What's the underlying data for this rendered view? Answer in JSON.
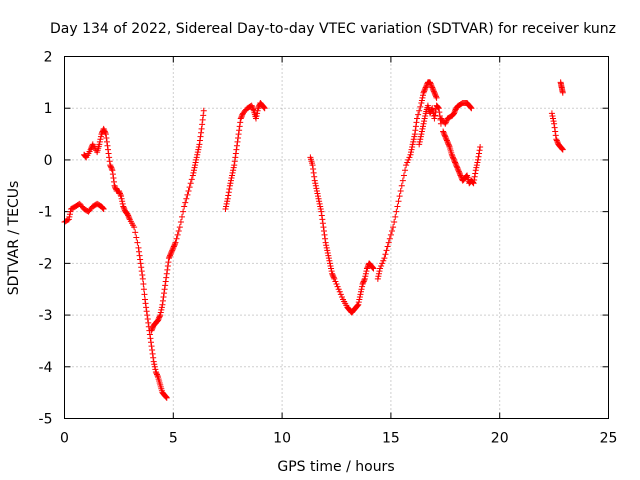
{
  "chart_data": {
    "type": "scatter",
    "title": "Day 134 of 2022, Sidereal Day-to-day VTEC variation (SDTVAR) for receiver kunz",
    "xlabel": "GPS time / hours",
    "ylabel": "SDTVAR / TECUs",
    "xlim": [
      0,
      25
    ],
    "ylim": [
      -5,
      2
    ],
    "xticks": [
      0,
      5,
      10,
      15,
      20,
      25
    ],
    "yticks": [
      -5,
      -4,
      -3,
      -2,
      -1,
      0,
      1,
      2
    ],
    "xtick_labels": [
      "0",
      "5",
      "10",
      "15",
      "20",
      "25"
    ],
    "ytick_labels": [
      "-5",
      "-4",
      "-3",
      "-2",
      "-1",
      "0",
      "1",
      "2"
    ],
    "grid": true,
    "marker": "+",
    "color": "#ff0000",
    "series": [
      {
        "name": "seg1",
        "x": [
          0.0,
          0.2,
          0.3,
          0.5,
          0.7,
          0.9,
          1.1,
          1.3,
          1.5,
          1.7,
          1.8
        ],
        "y": [
          -1.2,
          -1.15,
          -0.95,
          -0.9,
          -0.85,
          -0.95,
          -1.0,
          -0.9,
          -0.85,
          -0.9,
          -0.95
        ]
      },
      {
        "name": "seg2",
        "x": [
          0.9,
          1.0,
          1.2,
          1.3,
          1.5,
          1.6,
          1.7,
          1.8,
          1.9,
          2.0,
          2.1,
          2.2,
          2.3,
          2.4,
          2.5,
          2.6,
          2.7,
          2.8,
          2.9,
          3.0,
          3.2,
          3.4,
          3.5,
          3.6,
          3.7,
          3.8,
          3.9,
          4.0,
          4.1,
          4.2,
          4.3,
          4.4,
          4.5,
          4.6,
          4.7
        ],
        "y": [
          0.1,
          0.05,
          0.2,
          0.3,
          0.15,
          0.3,
          0.5,
          0.6,
          0.5,
          0.2,
          -0.1,
          -0.2,
          -0.5,
          -0.6,
          -0.6,
          -0.7,
          -0.9,
          -1.0,
          -1.05,
          -1.15,
          -1.3,
          -1.7,
          -2.0,
          -2.3,
          -2.7,
          -3.0,
          -3.3,
          -3.6,
          -3.9,
          -4.1,
          -4.2,
          -4.35,
          -4.5,
          -4.55,
          -4.6
        ]
      },
      {
        "name": "seg3",
        "x": [
          4.0,
          4.1,
          4.2,
          4.3,
          4.4,
          4.5,
          4.6,
          4.7,
          4.8,
          4.9,
          5.0,
          5.1,
          5.3,
          5.5,
          5.7,
          5.9,
          6.0,
          6.1,
          6.2,
          6.3,
          6.4
        ],
        "y": [
          -3.3,
          -3.2,
          -3.15,
          -3.1,
          -3.0,
          -2.8,
          -2.5,
          -2.2,
          -1.9,
          -1.8,
          -1.7,
          -1.6,
          -1.3,
          -0.9,
          -0.6,
          -0.3,
          -0.1,
          0.1,
          0.3,
          0.6,
          0.95
        ]
      },
      {
        "name": "seg4",
        "x": [
          7.4,
          7.5,
          7.6,
          7.7,
          7.8,
          7.9,
          8.0,
          8.1,
          8.2,
          8.4,
          8.6,
          8.7,
          8.8,
          8.9,
          9.0,
          9.1,
          9.2
        ],
        "y": [
          -0.95,
          -0.75,
          -0.5,
          -0.3,
          -0.1,
          0.2,
          0.5,
          0.8,
          0.9,
          1.0,
          1.05,
          0.95,
          0.8,
          1.0,
          1.1,
          1.05,
          1.0
        ]
      },
      {
        "name": "seg5",
        "x": [
          11.3,
          11.4,
          11.5,
          11.6,
          11.7,
          11.8,
          11.9,
          12.0,
          12.1,
          12.2,
          12.3,
          12.4,
          12.6,
          12.8,
          13.0,
          13.1,
          13.2,
          13.3,
          13.4,
          13.5,
          13.6,
          13.7,
          13.8,
          13.9,
          14.0,
          14.1,
          14.2
        ],
        "y": [
          0.05,
          -0.1,
          -0.4,
          -0.6,
          -0.8,
          -1.0,
          -1.3,
          -1.6,
          -1.8,
          -2.0,
          -2.2,
          -2.3,
          -2.5,
          -2.7,
          -2.85,
          -2.9,
          -2.95,
          -2.9,
          -2.85,
          -2.8,
          -2.6,
          -2.4,
          -2.3,
          -2.1,
          -2.0,
          -2.05,
          -2.1
        ]
      },
      {
        "name": "seg6",
        "x": [
          14.4,
          14.5,
          14.7,
          14.9,
          15.1,
          15.3,
          15.5,
          15.7,
          15.9,
          16.0,
          16.1,
          16.2,
          16.4,
          16.5,
          16.6,
          16.7,
          16.8,
          16.9,
          17.0,
          17.1
        ],
        "y": [
          -2.3,
          -2.1,
          -1.9,
          -1.6,
          -1.3,
          -0.9,
          -0.5,
          -0.1,
          0.1,
          0.3,
          0.5,
          0.8,
          1.1,
          1.3,
          1.4,
          1.5,
          1.5,
          1.4,
          1.3,
          1.2
        ]
      },
      {
        "name": "seg7",
        "x": [
          16.3,
          16.4,
          16.5,
          16.6,
          16.7,
          16.8,
          16.9,
          17.0,
          17.1,
          17.2,
          17.3
        ],
        "y": [
          0.3,
          0.5,
          0.7,
          0.9,
          1.05,
          0.9,
          1.0,
          0.8,
          1.05,
          1.0,
          0.7
        ]
      },
      {
        "name": "seg8",
        "x": [
          17.3,
          17.5,
          17.6,
          17.8,
          17.9,
          18.0,
          18.1,
          18.3,
          18.5,
          18.6,
          18.7
        ],
        "y": [
          0.8,
          0.7,
          0.8,
          0.85,
          0.9,
          1.0,
          1.05,
          1.1,
          1.1,
          1.05,
          1.0
        ]
      },
      {
        "name": "seg9",
        "x": [
          17.4,
          17.5,
          17.6,
          17.7,
          17.8,
          17.9,
          18.0,
          18.1,
          18.2,
          18.3,
          18.4,
          18.5,
          18.6,
          18.7,
          18.8,
          18.9,
          19.0,
          19.1
        ],
        "y": [
          0.55,
          0.45,
          0.35,
          0.25,
          0.1,
          0.0,
          -0.1,
          -0.2,
          -0.3,
          -0.4,
          -0.35,
          -0.3,
          -0.45,
          -0.4,
          -0.45,
          -0.2,
          0.0,
          0.25
        ]
      },
      {
        "name": "seg10",
        "x": [
          22.4,
          22.5,
          22.6,
          22.7,
          22.8,
          22.9
        ],
        "y": [
          0.9,
          0.7,
          0.4,
          0.3,
          0.25,
          0.2
        ]
      },
      {
        "name": "seg11",
        "x": [
          22.8,
          22.85,
          22.9
        ],
        "y": [
          1.5,
          1.4,
          1.3
        ]
      }
    ]
  }
}
